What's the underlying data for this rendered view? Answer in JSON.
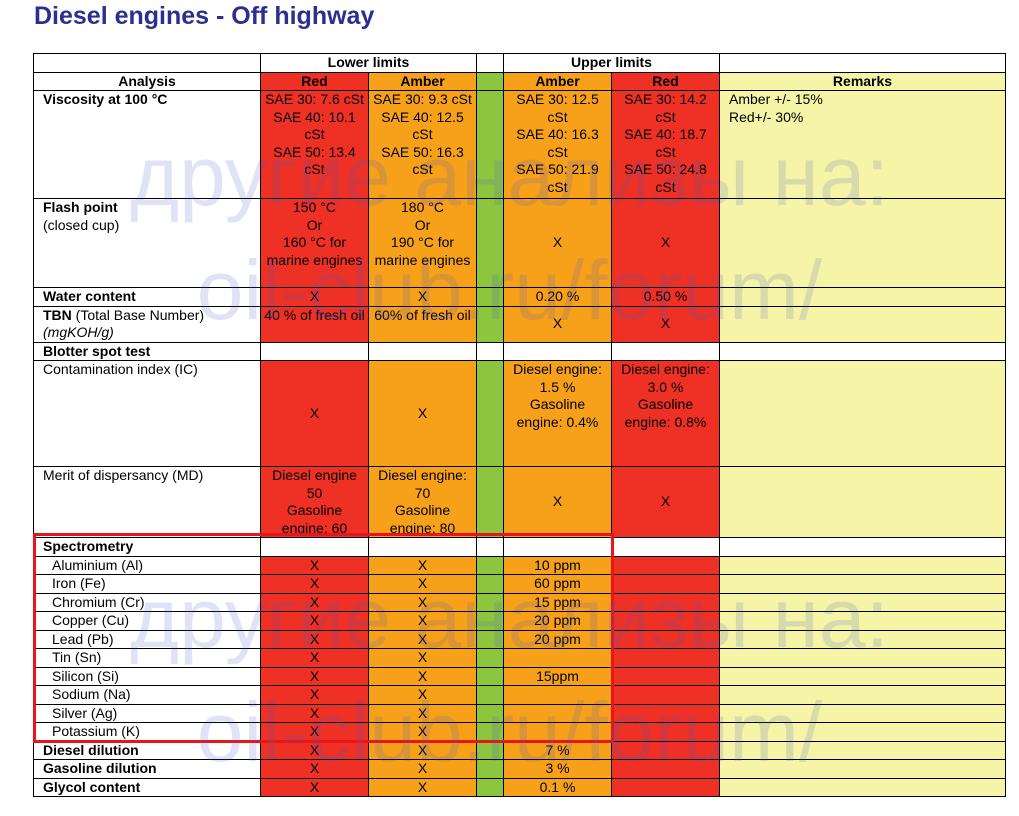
{
  "title": "Diesel engines - Off highway",
  "header": {
    "lower_limits": "Lower limits",
    "upper_limits": "Upper limits",
    "analysis": "Analysis",
    "red": "Red",
    "amber": "Amber",
    "remarks": "Remarks"
  },
  "colors": {
    "red": "#ee3124",
    "amber": "#f7a11a",
    "green": "#8cc63f",
    "remarks": "#f6f4a6",
    "title": "#2b2f8f",
    "highlight": "#e8161b"
  },
  "viscosity": {
    "label": "Viscosity at 100 °C",
    "lower_red": "SAE 30: 7.6 cSt\nSAE 40: 10.1 cSt\nSAE 50: 13.4 cSt",
    "lower_amber": "SAE 30: 9.3 cSt\nSAE 40: 12.5 cSt\nSAE 50: 16.3 cSt",
    "upper_amber": "SAE 30: 12.5 cSt\nSAE 40: 16.3 cSt\nSAE 50: 21.9 cSt",
    "upper_red": "SAE 30: 14.2 cSt\nSAE 40: 18.7 cSt\nSAE 50: 24.8 cSt",
    "remarks": "Amber +/- 15%\nRed+/- 30%"
  },
  "flash_point": {
    "label": "Flash point",
    "sublabel": "(closed cup)",
    "lower_red": "150 °C\nOr\n160 °C for marine engines",
    "lower_amber": "180 °C\nOr\n190 °C for marine engines",
    "upper_amber": "X",
    "upper_red": "X"
  },
  "water": {
    "label": "Water content",
    "lower_red": "X",
    "lower_amber": "X",
    "upper_amber": "0.20 %",
    "upper_red": "0.50 %"
  },
  "tbn": {
    "label_bold": "TBN",
    "label_rest": " (Total Base Number)",
    "unit": "(mgKOH/g)",
    "lower_red": "40 % of fresh oil",
    "lower_amber": "60% of fresh oil",
    "upper_amber": "X",
    "upper_red": "X"
  },
  "blotter": {
    "label": "Blotter spot test"
  },
  "contamination": {
    "label": "Contamination index (IC)",
    "lower_red": "X",
    "lower_amber": "X",
    "upper_amber": "Diesel engine: 1.5 %\nGasoline engine: 0.4%",
    "upper_red": "Diesel engine: 3.0 %\nGasoline engine: 0.8%"
  },
  "dispersancy": {
    "label": "Merit of dispersancy (MD)",
    "lower_red": "Diesel engine 50\nGasoline engine: 60",
    "lower_amber": "Diesel engine: 70\nGasoline engine: 80",
    "upper_amber": "X",
    "upper_red": "X"
  },
  "spectrometry": {
    "label": "Spectrometry",
    "rows": [
      {
        "label": "Aluminium (Al)",
        "lower_red": "X",
        "lower_amber": "X",
        "upper_amber": "10 ppm"
      },
      {
        "label": "Iron (Fe)",
        "lower_red": "X",
        "lower_amber": "X",
        "upper_amber": "60 ppm"
      },
      {
        "label": "Chromium (Cr)",
        "lower_red": "X",
        "lower_amber": "X",
        "upper_amber": "15 ppm"
      },
      {
        "label": "Copper (Cu)",
        "lower_red": "X",
        "lower_amber": "X",
        "upper_amber": "20 ppm"
      },
      {
        "label": "Lead (Pb)",
        "lower_red": "X",
        "lower_amber": "X",
        "upper_amber": "20 ppm"
      },
      {
        "label": "Tin (Sn)",
        "lower_red": "X",
        "lower_amber": "X",
        "upper_amber": ""
      },
      {
        "label": "Silicon (Si)",
        "lower_red": "X",
        "lower_amber": "X",
        "upper_amber": "15ppm"
      },
      {
        "label": "Sodium (Na)",
        "lower_red": "X",
        "lower_amber": "X",
        "upper_amber": ""
      },
      {
        "label": "Silver (Ag)",
        "lower_red": "X",
        "lower_amber": "X",
        "upper_amber": ""
      },
      {
        "label": "Potassium (K)",
        "lower_red": "X",
        "lower_amber": "X",
        "upper_amber": ""
      }
    ]
  },
  "dilution": [
    {
      "label": "Diesel dilution",
      "lower_red": "X",
      "lower_amber": "X",
      "upper_amber": "7 %"
    },
    {
      "label": "Gasoline dilution",
      "lower_red": "X",
      "lower_amber": "X",
      "upper_amber": "3 %"
    },
    {
      "label": "Glycol content",
      "lower_red": "X",
      "lower_amber": "X",
      "upper_amber": "0.1 %"
    }
  ],
  "watermark": {
    "line1": "другие анализы на:",
    "line2": "oil-club.ru/forum/"
  }
}
